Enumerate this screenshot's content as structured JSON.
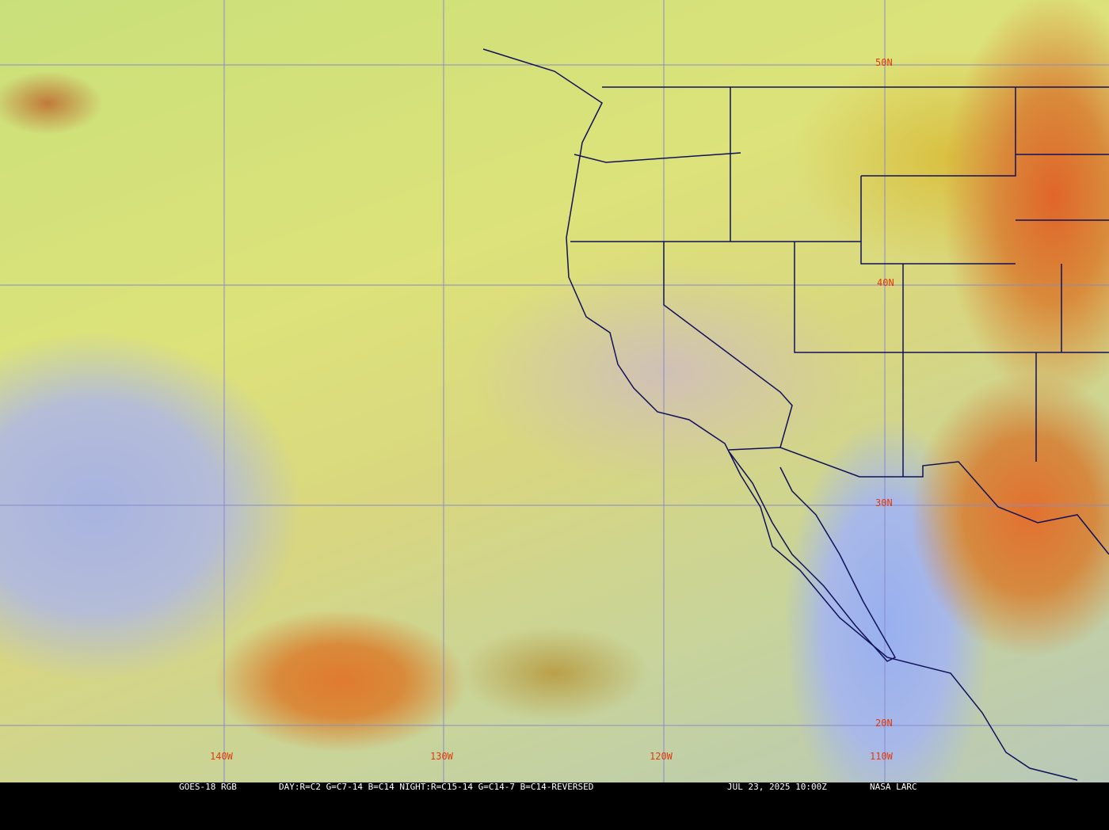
{
  "image": {
    "description_type": "satellite-rgb-composite"
  },
  "grid": {
    "lat_labels": [
      "50N",
      "40N",
      "30N",
      "20N"
    ],
    "lon_labels": [
      "140W",
      "130W",
      "120W",
      "110W"
    ],
    "grid_color": "#8a8ac8",
    "label_color": "#e03a10",
    "border_color": "#10105a"
  },
  "caption": {
    "product": "GOES-18 RGB",
    "recipe": "DAY:R=C2 G=C7-14 B=C14 NIGHT:R=C15-14 G=C14-7 B=C14-REVERSED",
    "timestamp": "JUL 23, 2025 10:00Z",
    "credit": "NASA LARC"
  }
}
